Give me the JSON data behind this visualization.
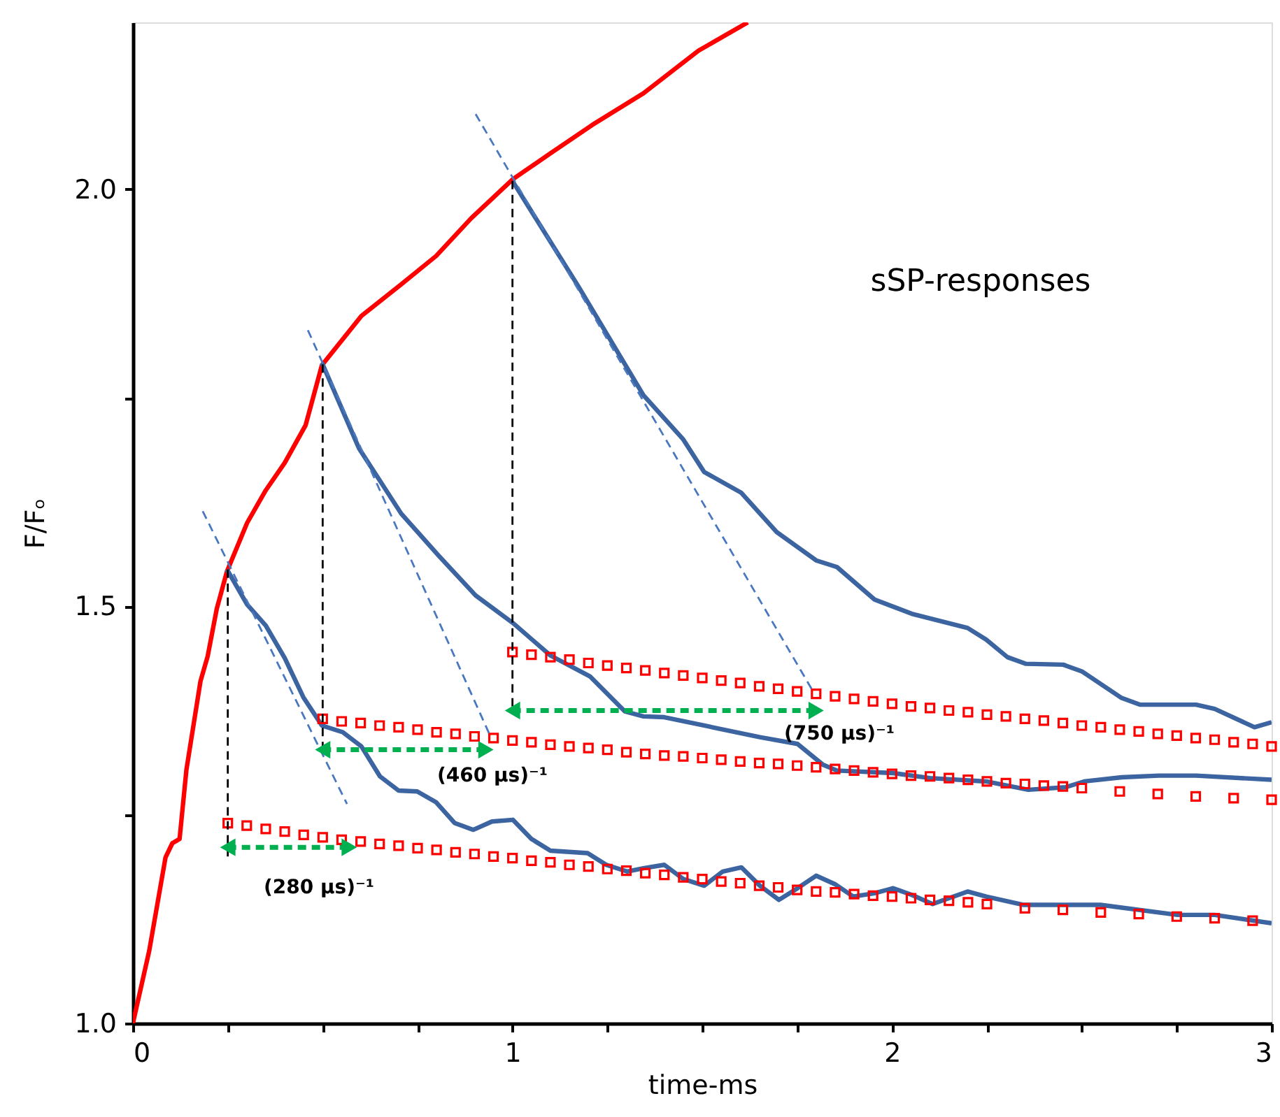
{
  "chart_data": {
    "type": "line",
    "xlabel": "time-ms",
    "ylabel": "F/Fₒ",
    "xlim": [
      0,
      3
    ],
    "ylim": [
      1,
      2.2
    ],
    "xticks": [
      0,
      {
        "value": 0.25,
        "label": null
      },
      {
        "value": 0.5,
        "label": null
      },
      {
        "value": 0.75,
        "label": null
      },
      1,
      {
        "value": 1.25,
        "label": null
      },
      {
        "value": 1.5,
        "label": null
      },
      {
        "value": 1.75,
        "label": null
      },
      2,
      {
        "value": 2.25,
        "label": null
      },
      {
        "value": 2.5,
        "label": null
      },
      {
        "value": 2.75,
        "label": null
      },
      3
    ],
    "yticks": [
      {
        "value": 1,
        "label": "1.0"
      },
      {
        "value": 1.25,
        "label": null
      },
      {
        "value": 1.5,
        "label": "1.5"
      },
      {
        "value": 1.75,
        "label": null
      },
      {
        "value": 2,
        "label": "2.0"
      }
    ],
    "grid": false,
    "annotations": [
      "sSP-responses",
      "(280 µs)⁻¹",
      "(460 µs)⁻¹",
      "(750 µs)⁻¹"
    ],
    "series": [
      {
        "color": "#ff0000",
        "line_style": "solid",
        "x": [
          0,
          0.043,
          0.086,
          0.104,
          0.123,
          0.141,
          0.178,
          0.197,
          0.221,
          0.248,
          0.301,
          0.35,
          0.4,
          0.455,
          0.498,
          0.602,
          0.707,
          0.799,
          0.891,
          1.001,
          1.1,
          1.21,
          1.345,
          1.49,
          1.62
        ],
        "values": [
          1.0,
          1.087,
          1.199,
          1.216,
          1.221,
          1.304,
          1.41,
          1.44,
          1.497,
          1.542,
          1.6,
          1.639,
          1.672,
          1.717,
          1.789,
          1.848,
          1.886,
          1.92,
          1.965,
          2.012,
          2.043,
          2.077,
          2.115,
          2.166,
          2.2
        ]
      },
      {
        "color": "#3b64a0",
        "line_style": "solid",
        "x": [
          0.248,
          0.301,
          0.35,
          0.4,
          0.449,
          0.498,
          0.553,
          0.602,
          0.651,
          0.7,
          0.749,
          0.799,
          0.848,
          0.897,
          0.946,
          1.001,
          1.05,
          1.1,
          1.198,
          1.247,
          1.302,
          1.345,
          1.4,
          1.45,
          1.505,
          1.554,
          1.603,
          1.652,
          1.702,
          1.751,
          1.8,
          1.849,
          1.898,
          1.954,
          2.003,
          2.052,
          2.107,
          2.199,
          2.248,
          2.347,
          2.549,
          2.752,
          2.85,
          3.0
        ],
        "values": [
          1.544,
          1.502,
          1.477,
          1.438,
          1.391,
          1.357,
          1.349,
          1.332,
          1.296,
          1.279,
          1.278,
          1.265,
          1.24,
          1.232,
          1.242,
          1.244,
          1.221,
          1.207,
          1.204,
          1.19,
          1.182,
          1.186,
          1.19,
          1.173,
          1.165,
          1.182,
          1.187,
          1.165,
          1.148,
          1.162,
          1.177,
          1.167,
          1.152,
          1.156,
          1.162,
          1.154,
          1.143,
          1.158,
          1.152,
          1.142,
          1.142,
          1.13,
          1.13,
          1.12
        ]
      },
      {
        "color": "#3b64a0",
        "line_style": "solid",
        "x": [
          0.498,
          0.596,
          0.707,
          0.805,
          0.903,
          1.001,
          1.1,
          1.204,
          1.296,
          1.345,
          1.4,
          1.505,
          1.652,
          1.751,
          1.818,
          1.855,
          2.003,
          2.1,
          2.248,
          2.359,
          2.457,
          2.506,
          2.605,
          2.703,
          2.801,
          3.0
        ],
        "values": [
          1.792,
          1.689,
          1.611,
          1.561,
          1.513,
          1.48,
          1.441,
          1.416,
          1.374,
          1.368,
          1.367,
          1.357,
          1.343,
          1.335,
          1.31,
          1.303,
          1.3,
          1.294,
          1.29,
          1.28,
          1.283,
          1.29,
          1.295,
          1.297,
          1.297,
          1.292
        ]
      },
      {
        "color": "#3b64a0",
        "line_style": "solid",
        "x": [
          1.001,
          1.173,
          1.345,
          1.45,
          1.505,
          1.603,
          1.696,
          1.8,
          1.855,
          1.954,
          2.052,
          2.199,
          2.248,
          2.304,
          2.353,
          2.451,
          2.5,
          2.605,
          2.654,
          2.801,
          2.85,
          2.955,
          3.0
        ],
        "values": [
          2.009,
          1.884,
          1.753,
          1.7,
          1.661,
          1.636,
          1.589,
          1.555,
          1.547,
          1.508,
          1.491,
          1.474,
          1.46,
          1.439,
          1.431,
          1.43,
          1.422,
          1.39,
          1.382,
          1.382,
          1.377,
          1.355,
          1.361
        ]
      },
      {
        "type": "scatter",
        "marker": "square",
        "color": "#ff0000",
        "x": [
          0.25,
          0.3,
          0.35,
          0.4,
          0.45,
          0.5,
          0.55,
          0.6,
          0.65,
          0.7,
          0.75,
          0.8,
          0.85,
          0.9,
          0.95,
          1.0,
          1.05,
          1.1,
          1.15,
          1.2,
          1.25,
          1.3,
          1.35,
          1.4,
          1.45,
          1.5,
          1.55,
          1.6,
          1.65,
          1.7,
          1.75,
          1.8,
          1.85,
          1.9,
          1.95,
          2.0,
          2.05,
          2.1,
          2.15,
          2.2,
          2.25,
          2.35,
          2.45,
          2.55,
          2.65,
          2.75,
          2.85,
          2.95
        ],
        "values": [
          1.24,
          1.237,
          1.233,
          1.23,
          1.226,
          1.223,
          1.22,
          1.218,
          1.215,
          1.213,
          1.21,
          1.208,
          1.205,
          1.203,
          1.2,
          1.198,
          1.195,
          1.193,
          1.19,
          1.188,
          1.185,
          1.183,
          1.18,
          1.178,
          1.175,
          1.173,
          1.17,
          1.168,
          1.165,
          1.163,
          1.16,
          1.158,
          1.157,
          1.155,
          1.153,
          1.152,
          1.15,
          1.148,
          1.147,
          1.145,
          1.143,
          1.138,
          1.136,
          1.133,
          1.131,
          1.128,
          1.126,
          1.123
        ]
      },
      {
        "type": "scatter",
        "marker": "square",
        "color": "#ff0000",
        "x": [
          0.5,
          0.55,
          0.6,
          0.65,
          0.7,
          0.75,
          0.8,
          0.85,
          0.9,
          0.95,
          1.0,
          1.05,
          1.1,
          1.15,
          1.2,
          1.25,
          1.3,
          1.35,
          1.4,
          1.45,
          1.5,
          1.55,
          1.6,
          1.65,
          1.7,
          1.75,
          1.8,
          1.85,
          1.9,
          1.95,
          2.0,
          2.05,
          2.1,
          2.15,
          2.2,
          2.25,
          2.3,
          2.35,
          2.4,
          2.45,
          2.5,
          2.6,
          2.7,
          2.8,
          2.9,
          3.0
        ],
        "values": [
          1.365,
          1.362,
          1.36,
          1.357,
          1.355,
          1.352,
          1.349,
          1.347,
          1.344,
          1.342,
          1.339,
          1.337,
          1.334,
          1.332,
          1.33,
          1.328,
          1.325,
          1.323,
          1.321,
          1.32,
          1.318,
          1.316,
          1.314,
          1.312,
          1.311,
          1.309,
          1.307,
          1.305,
          1.303,
          1.301,
          1.299,
          1.297,
          1.296,
          1.294,
          1.292,
          1.29,
          1.288,
          1.287,
          1.285,
          1.284,
          1.282,
          1.278,
          1.275,
          1.272,
          1.27,
          1.268
        ]
      },
      {
        "type": "scatter",
        "marker": "square",
        "color": "#ff0000",
        "x": [
          1.0,
          1.05,
          1.1,
          1.15,
          1.2,
          1.25,
          1.3,
          1.35,
          1.4,
          1.45,
          1.5,
          1.55,
          1.6,
          1.65,
          1.7,
          1.75,
          1.8,
          1.85,
          1.9,
          1.95,
          2.0,
          2.05,
          2.1,
          2.15,
          2.2,
          2.25,
          2.3,
          2.35,
          2.4,
          2.45,
          2.5,
          2.55,
          2.6,
          2.65,
          2.7,
          2.75,
          2.8,
          2.85,
          2.9,
          2.95,
          3.0
        ],
        "values": [
          1.445,
          1.442,
          1.439,
          1.436,
          1.432,
          1.429,
          1.426,
          1.423,
          1.42,
          1.417,
          1.414,
          1.411,
          1.408,
          1.404,
          1.401,
          1.398,
          1.395,
          1.392,
          1.389,
          1.386,
          1.383,
          1.38,
          1.378,
          1.375,
          1.373,
          1.37,
          1.368,
          1.365,
          1.363,
          1.36,
          1.357,
          1.355,
          1.352,
          1.35,
          1.347,
          1.345,
          1.342,
          1.34,
          1.337,
          1.335,
          1.332
        ]
      },
      {
        "type": "line",
        "color": "#4a78c0",
        "line_style": "dashed",
        "x": [
          0.184,
          0.564
        ],
        "values": [
          1.614,
          1.263
        ]
      },
      {
        "type": "line",
        "color": "#4a78c0",
        "line_style": "dashed",
        "x": [
          0.461,
          0.94
        ],
        "values": [
          1.831,
          1.346
        ]
      },
      {
        "type": "line",
        "color": "#4a78c0",
        "line_style": "dashed",
        "x": [
          0.903,
          1.788
        ],
        "values": [
          2.09,
          1.401
        ]
      },
      {
        "type": "line",
        "color": "#000000",
        "line_style": "dashed",
        "x": [
          0.25,
          0.25
        ],
        "values": [
          1.544,
          1.2
        ]
      },
      {
        "type": "line",
        "color": "#000000",
        "line_style": "dashed",
        "x": [
          0.5,
          0.5
        ],
        "values": [
          1.79,
          1.326
        ]
      },
      {
        "type": "line",
        "color": "#000000",
        "line_style": "dashed",
        "x": [
          1.0,
          1.0
        ],
        "values": [
          2.01,
          1.376
        ]
      },
      {
        "type": "line",
        "color": "#00b050",
        "line_style": "dashed",
        "marker": "triangle",
        "x": [
          0.25,
          0.57
        ],
        "values": [
          1.211,
          1.211
        ]
      },
      {
        "type": "line",
        "color": "#00b050",
        "line_style": "dashed",
        "marker": "triangle",
        "x": [
          0.5,
          0.93
        ],
        "values": [
          1.328,
          1.328
        ]
      },
      {
        "type": "line",
        "color": "#00b050",
        "line_style": "dashed",
        "marker": "triangle",
        "x": [
          1.0,
          1.8
        ],
        "values": [
          1.375,
          1.375
        ]
      }
    ]
  }
}
